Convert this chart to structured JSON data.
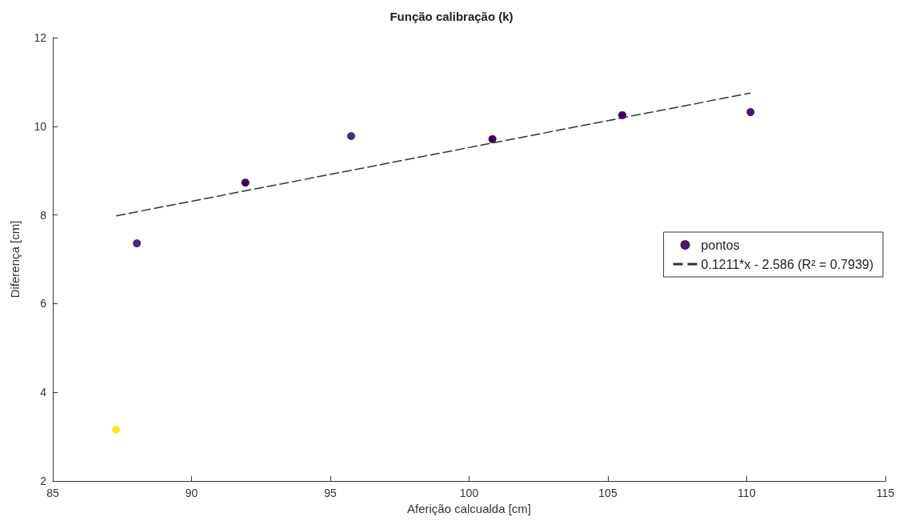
{
  "chart_data": {
    "type": "scatter",
    "title": "Função calibração (k)",
    "xlabel": "Aferição calcualda [cm]",
    "ylabel": "Diferença [cm]",
    "xlim": [
      85,
      115
    ],
    "xticks": [
      85,
      90,
      95,
      100,
      105,
      110,
      115
    ],
    "ylim": [
      2,
      12
    ],
    "yticks": [
      2,
      4,
      6,
      8,
      10,
      12
    ],
    "grid": false,
    "legend": "right",
    "marker": "circle",
    "series": [
      {
        "name": "pontos",
        "color": "#481a6c",
        "x": [
          87.28,
          88.03,
          91.94,
          95.75,
          100.84,
          105.52,
          110.14
        ],
        "values": [
          3.16,
          7.36,
          8.73,
          9.78,
          9.71,
          10.25,
          10.32
        ],
        "colors": [
          "#fde725",
          "#482878",
          "#440154",
          "#472d7b",
          "#440154",
          "#440154",
          "#46186f"
        ]
      },
      {
        "name": "0.1211*x - 2.586 (R² = 0.7939)",
        "type": "line",
        "line_style": "dashed",
        "marker": "none",
        "color": "#333333",
        "x": [
          87.28,
          110.14
        ],
        "values": [
          7.98,
          10.75
        ]
      }
    ]
  }
}
